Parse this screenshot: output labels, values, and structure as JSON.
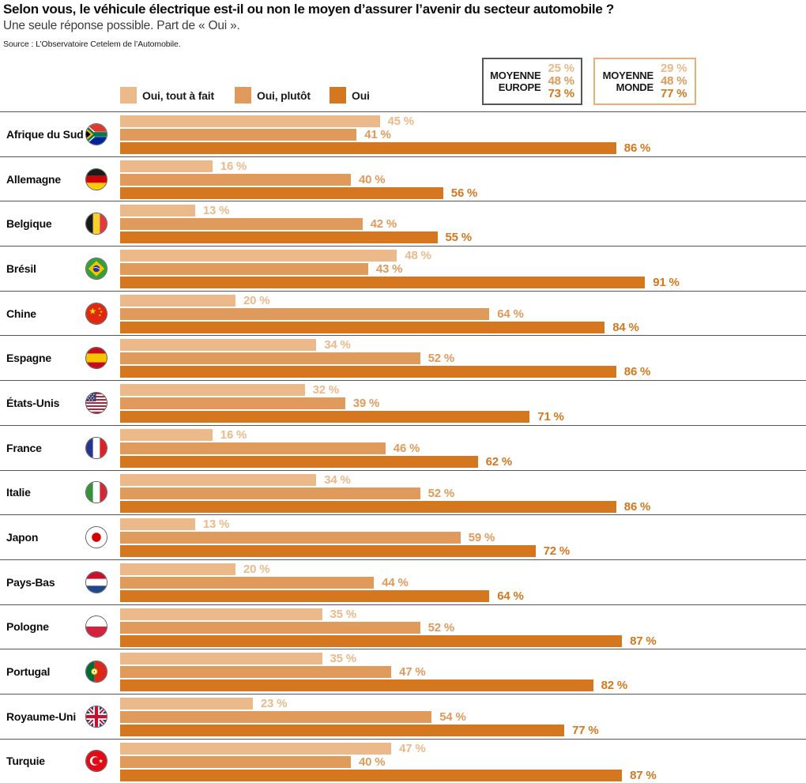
{
  "header": {
    "title": "Selon vous, le véhicule électrique est-il ou non le moyen d’assurer l’avenir du secteur automobile ?",
    "subtitle": "Une seule réponse possible. Part de « Oui ».",
    "source": "Source : L’Observatoire Cetelem de l’Automobile."
  },
  "averages": [
    {
      "label_line1": "MOYENNE",
      "label_line2": "EUROPE",
      "values": [
        "25 %",
        "48 %",
        "73 %"
      ],
      "border_color": "#54565B"
    },
    {
      "label_line1": "MOYENNE",
      "label_line2": "MONDE",
      "values": [
        "29 %",
        "48 %",
        "77 %"
      ],
      "border_color": "#ECAE71"
    }
  ],
  "legend": [
    {
      "label": "Oui, tout à fait",
      "color": "#EBB98A"
    },
    {
      "label": "Oui, plutôt",
      "color": "#E09A5B"
    },
    {
      "label": "Oui",
      "color": "#D4771E"
    }
  ],
  "chart_data": {
    "type": "bar",
    "orientation": "horizontal",
    "unit": "%",
    "xlim": [
      0,
      100
    ],
    "title": "Selon vous, le véhicule électrique est-il ou non le moyen d’assurer l’avenir du secteur automobile ?",
    "categories": [
      "Afrique du Sud",
      "Allemagne",
      "Belgique",
      "Brésil",
      "Chine",
      "Espagne",
      "États-Unis",
      "France",
      "Italie",
      "Japon",
      "Pays-Bas",
      "Pologne",
      "Portugal",
      "Royaume-Uni",
      "Turquie"
    ],
    "flags": [
      "south-africa-flag-icon",
      "germany-flag-icon",
      "belgium-flag-icon",
      "brazil-flag-icon",
      "china-flag-icon",
      "spain-flag-icon",
      "usa-flag-icon",
      "france-flag-icon",
      "italy-flag-icon",
      "japan-flag-icon",
      "netherlands-flag-icon",
      "poland-flag-icon",
      "portugal-flag-icon",
      "uk-flag-icon",
      "turkey-flag-icon"
    ],
    "series": [
      {
        "name": "Oui, tout à fait",
        "slug": "bar-oui-tout-a-fait",
        "color": "#EBB98A",
        "values": [
          45,
          16,
          13,
          48,
          20,
          34,
          32,
          16,
          34,
          13,
          20,
          35,
          35,
          23,
          47
        ]
      },
      {
        "name": "Oui, plutôt",
        "slug": "bar-oui-plutot",
        "color": "#E09A5B",
        "values": [
          41,
          40,
          42,
          43,
          64,
          52,
          39,
          46,
          52,
          59,
          44,
          52,
          47,
          54,
          40
        ]
      },
      {
        "name": "Oui",
        "slug": "bar-oui-total",
        "color": "#D4771E",
        "values": [
          86,
          56,
          55,
          91,
          84,
          86,
          71,
          62,
          86,
          72,
          64,
          87,
          82,
          77,
          87
        ]
      }
    ],
    "averages": {
      "europe": {
        "label": "MOYENNE EUROPE",
        "values": [
          25,
          48,
          73
        ]
      },
      "monde": {
        "label": "MOYENNE MONDE",
        "values": [
          29,
          48,
          77
        ]
      }
    },
    "legend_position": "top"
  }
}
